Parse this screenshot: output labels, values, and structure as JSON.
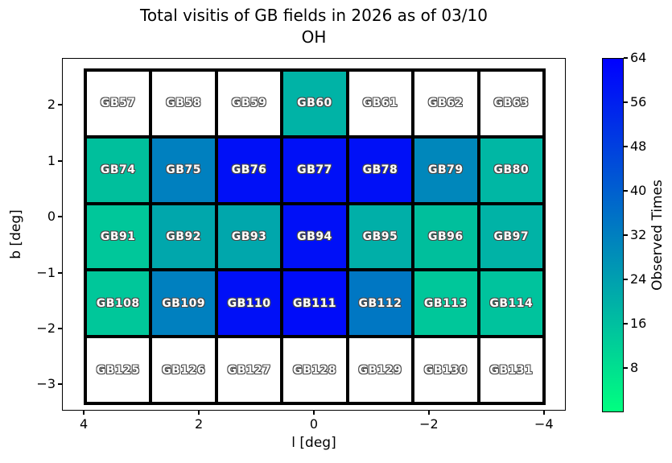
{
  "title": {
    "line1": "Total visitis of GB fields in 2026 as of 03/10",
    "line2": "OH"
  },
  "axes": {
    "xlabel": "l [deg]",
    "ylabel": "b [deg]",
    "x_ticks": [
      {
        "value": 4,
        "label": "4"
      },
      {
        "value": 2,
        "label": "2"
      },
      {
        "value": 0,
        "label": "0"
      },
      {
        "value": -2,
        "label": "−2"
      },
      {
        "value": -4,
        "label": "−4"
      }
    ],
    "y_ticks": [
      {
        "value": 2,
        "label": "2"
      },
      {
        "value": 1,
        "label": "1"
      },
      {
        "value": 0,
        "label": "0"
      },
      {
        "value": -1,
        "label": "−1"
      },
      {
        "value": -2,
        "label": "−2"
      },
      {
        "value": -3,
        "label": "−3"
      }
    ]
  },
  "colorbar": {
    "label": "Observed Times",
    "ticks": [
      {
        "value": 8,
        "label": "8"
      },
      {
        "value": 16,
        "label": "16"
      },
      {
        "value": 24,
        "label": "24"
      },
      {
        "value": 32,
        "label": "32"
      },
      {
        "value": 40,
        "label": "40"
      },
      {
        "value": 48,
        "label": "48"
      },
      {
        "value": 56,
        "label": "56"
      },
      {
        "value": 64,
        "label": "64"
      }
    ],
    "vmin": 0,
    "vmax": 64,
    "bottom_color": "#00ff80",
    "top_color": "#0000ff"
  },
  "grid": {
    "rows": [
      {
        "cells": [
          {
            "label": "GB57",
            "value": null,
            "color": "#ffffff"
          },
          {
            "label": "GB58",
            "value": null,
            "color": "#ffffff"
          },
          {
            "label": "GB59",
            "value": null,
            "color": "#ffffff"
          },
          {
            "label": "GB60",
            "value": 19,
            "color": "#00b3a6"
          },
          {
            "label": "GB61",
            "value": null,
            "color": "#ffffff"
          },
          {
            "label": "GB62",
            "value": null,
            "color": "#ffffff"
          },
          {
            "label": "GB63",
            "value": null,
            "color": "#ffffff"
          }
        ]
      },
      {
        "cells": [
          {
            "label": "GB74",
            "value": 16,
            "color": "#00bf9c"
          },
          {
            "label": "GB75",
            "value": 32,
            "color": "#0080bf"
          },
          {
            "label": "GB76",
            "value": 60,
            "color": "#0010f7"
          },
          {
            "label": "GB77",
            "value": 60,
            "color": "#0010f7"
          },
          {
            "label": "GB78",
            "value": 60,
            "color": "#0010f7"
          },
          {
            "label": "GB79",
            "value": 30,
            "color": "#0087bb"
          },
          {
            "label": "GB80",
            "value": 18,
            "color": "#00b7a4"
          }
        ]
      },
      {
        "cells": [
          {
            "label": "GB91",
            "value": 14,
            "color": "#00c79a"
          },
          {
            "label": "GB92",
            "value": 22,
            "color": "#00a7ac"
          },
          {
            "label": "GB93",
            "value": 22,
            "color": "#00a7ac"
          },
          {
            "label": "GB94",
            "value": 60,
            "color": "#0010f7"
          },
          {
            "label": "GB95",
            "value": 20,
            "color": "#00afa8"
          },
          {
            "label": "GB96",
            "value": 16,
            "color": "#00bf9c"
          },
          {
            "label": "GB97",
            "value": 19,
            "color": "#00b3a6"
          }
        ]
      },
      {
        "cells": [
          {
            "label": "GB108",
            "value": 14,
            "color": "#00c79a"
          },
          {
            "label": "GB109",
            "value": 32,
            "color": "#0080bf"
          },
          {
            "label": "GB110",
            "value": 60,
            "color": "#0010f7"
          },
          {
            "label": "GB111",
            "value": 61,
            "color": "#000cf9"
          },
          {
            "label": "GB112",
            "value": 34,
            "color": "#0077c3"
          },
          {
            "label": "GB113",
            "value": 14,
            "color": "#00c79a"
          },
          {
            "label": "GB114",
            "value": 15,
            "color": "#00c39d"
          }
        ]
      },
      {
        "cells": [
          {
            "label": "GB125",
            "value": null,
            "color": "#ffffff"
          },
          {
            "label": "GB126",
            "value": null,
            "color": "#ffffff"
          },
          {
            "label": "GB127",
            "value": null,
            "color": "#ffffff"
          },
          {
            "label": "GB128",
            "value": null,
            "color": "#ffffff"
          },
          {
            "label": "GB129",
            "value": null,
            "color": "#ffffff"
          },
          {
            "label": "GB130",
            "value": null,
            "color": "#ffffff"
          },
          {
            "label": "GB131",
            "value": null,
            "color": "#ffffff"
          }
        ]
      }
    ]
  },
  "chart_data": {
    "type": "heatmap",
    "title": "Total visitis of GB fields in 2026 as of 03/10 OH",
    "xlabel": "l [deg]",
    "ylabel": "b [deg]",
    "x_axis_inverted": true,
    "xlim": [
      4.4,
      -4.4
    ],
    "ylim": [
      -3.5,
      2.85
    ],
    "x_tick_values": [
      4,
      2,
      0,
      -2,
      -4
    ],
    "y_tick_values": [
      2,
      1,
      0,
      -1,
      -2,
      -3
    ],
    "colormap": "winter_r",
    "colorbar_label": "Observed Times",
    "colorbar_ticks": [
      8,
      16,
      24,
      32,
      40,
      48,
      56,
      64
    ],
    "vmin": 0,
    "vmax": 64,
    "field_labels": [
      [
        "GB57",
        "GB58",
        "GB59",
        "GB60",
        "GB61",
        "GB62",
        "GB63"
      ],
      [
        "GB74",
        "GB75",
        "GB76",
        "GB77",
        "GB78",
        "GB79",
        "GB80"
      ],
      [
        "GB91",
        "GB92",
        "GB93",
        "GB94",
        "GB95",
        "GB96",
        "GB97"
      ],
      [
        "GB108",
        "GB109",
        "GB110",
        "GB111",
        "GB112",
        "GB113",
        "GB114"
      ],
      [
        "GB125",
        "GB126",
        "GB127",
        "GB128",
        "GB129",
        "GB130",
        "GB131"
      ]
    ],
    "values": [
      [
        null,
        null,
        null,
        19,
        null,
        null,
        null
      ],
      [
        16,
        32,
        60,
        60,
        60,
        30,
        18
      ],
      [
        14,
        22,
        22,
        60,
        20,
        16,
        19
      ],
      [
        14,
        32,
        60,
        61,
        34,
        14,
        15
      ],
      [
        null,
        null,
        null,
        null,
        null,
        null,
        null
      ]
    ]
  }
}
